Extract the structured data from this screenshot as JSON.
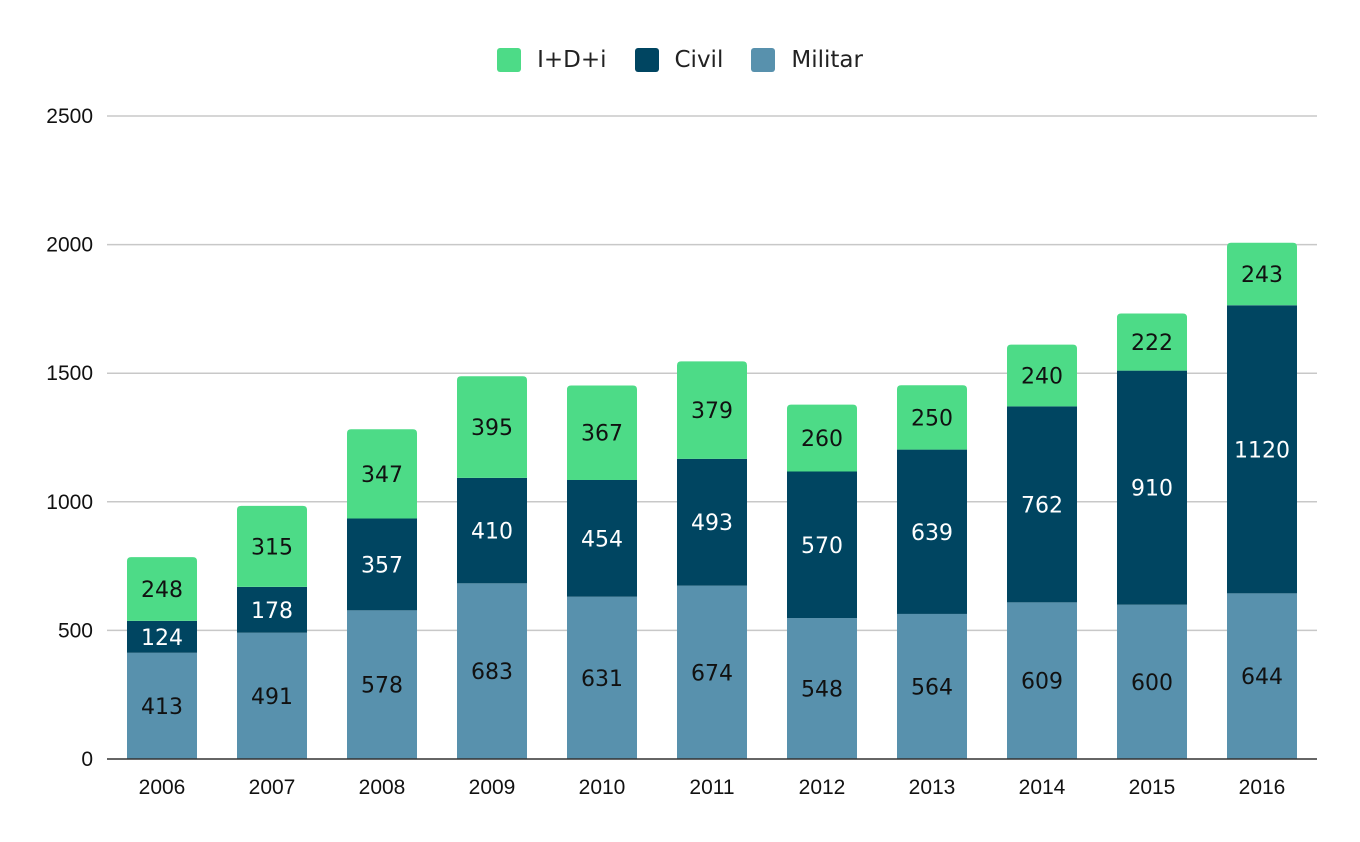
{
  "chart_data": {
    "type": "bar",
    "stacked": true,
    "categories": [
      "2006",
      "2007",
      "2008",
      "2009",
      "2010",
      "2011",
      "2012",
      "2013",
      "2014",
      "2015",
      "2016"
    ],
    "series": [
      {
        "name": "Militar",
        "color": "#5891ad",
        "label_color": "#111111",
        "values": [
          413,
          491,
          578,
          683,
          631,
          674,
          548,
          564,
          609,
          600,
          644
        ]
      },
      {
        "name": "Civil",
        "color": "#004561",
        "label_color": "#ffffff",
        "values": [
          124,
          178,
          357,
          410,
          454,
          493,
          570,
          639,
          762,
          910,
          1120
        ]
      },
      {
        "name": "I+D+i",
        "color": "#4ddb87",
        "label_color": "#111111",
        "values": [
          248,
          315,
          347,
          395,
          367,
          379,
          260,
          250,
          240,
          222,
          243
        ]
      }
    ],
    "legend_order": [
      "I+D+i",
      "Civil",
      "Militar"
    ],
    "legend_position": "top-center",
    "ylim": [
      0,
      2500
    ],
    "yticks": [
      0,
      500,
      1000,
      1500,
      2000,
      2500
    ],
    "grid": true,
    "title": "",
    "xlabel": "",
    "ylabel": ""
  }
}
